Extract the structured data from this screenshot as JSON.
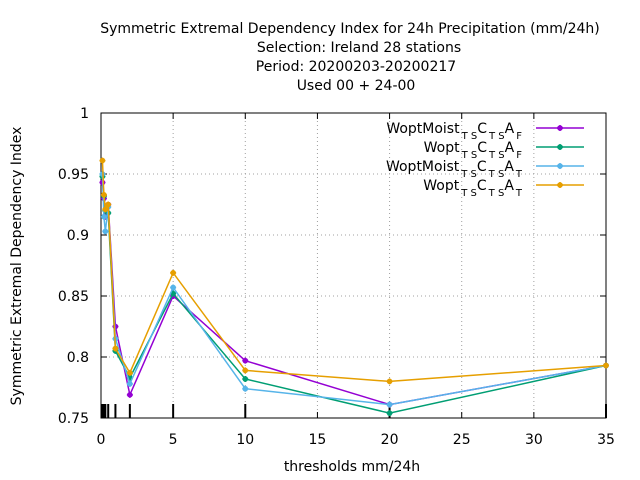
{
  "chart_data": {
    "type": "line",
    "title_lines": [
      "Symmetric Extremal Dependency Index  for 24h Precipitation (mm/24h)",
      "Selection: Ireland     28 stations",
      "Period: 20200203-20200217",
      "Used  00 + 24-00"
    ],
    "xlabel": "thresholds mm/24h",
    "ylabel": "Symmetric Extremal Dependency Index",
    "xlim": [
      0,
      35
    ],
    "ylim": [
      0.75,
      1
    ],
    "xticks": [
      0,
      5,
      10,
      15,
      20,
      25,
      30,
      35
    ],
    "yticks": [
      0.75,
      0.8,
      0.85,
      0.9,
      0.95,
      1
    ],
    "ytick_labels": [
      "0.75",
      "0.8",
      "0.85",
      "0.9",
      "0.95",
      "1"
    ],
    "grid": true,
    "legend_position": "top-right",
    "threshold_marks": [
      0.1,
      0.2,
      0.3,
      0.5,
      1,
      2,
      5,
      10,
      20,
      35
    ],
    "series": [
      {
        "name_main": "WoptMoist",
        "name_sub1": "T S",
        "name_mid": "C",
        "name_sub2": "T S",
        "name_end": "A",
        "name_sub3": "F",
        "color": "#9400d3",
        "x": [
          0.1,
          0.2,
          0.3,
          0.5,
          1,
          2,
          5,
          10,
          20,
          35
        ],
        "y": [
          0.943,
          0.93,
          0.915,
          0.925,
          0.825,
          0.769,
          0.85,
          0.797,
          0.761,
          0.793
        ]
      },
      {
        "name_main": "Wopt",
        "name_sub1": "T S",
        "name_mid": "C",
        "name_sub2": "T S",
        "name_end": "A",
        "name_sub3": "F",
        "color": "#009e73",
        "x": [
          0.1,
          0.2,
          0.3,
          0.5,
          1,
          2,
          5,
          10,
          20,
          35
        ],
        "y": [
          0.948,
          0.932,
          0.92,
          0.918,
          0.805,
          0.783,
          0.852,
          0.782,
          0.754,
          0.793
        ]
      },
      {
        "name_main": "WoptMoist",
        "name_sub1": "T S",
        "name_mid": "C",
        "name_sub2": "T S",
        "name_end": "A",
        "name_sub3": "T",
        "color": "#56b4e9",
        "x": [
          0.1,
          0.2,
          0.3,
          0.5,
          1,
          2,
          5,
          10,
          20,
          35
        ],
        "y": [
          0.95,
          0.915,
          0.903,
          0.923,
          0.815,
          0.778,
          0.857,
          0.774,
          0.761,
          0.793
        ]
      },
      {
        "name_main": "Wopt",
        "name_sub1": "T S",
        "name_mid": "C",
        "name_sub2": "T S",
        "name_end": "A",
        "name_sub3": "T",
        "color": "#e69f00",
        "x": [
          0.1,
          0.2,
          0.3,
          0.5,
          1,
          2,
          5,
          10,
          20,
          35
        ],
        "y": [
          0.961,
          0.933,
          0.921,
          0.925,
          0.807,
          0.787,
          0.869,
          0.789,
          0.78,
          0.793
        ]
      }
    ]
  }
}
